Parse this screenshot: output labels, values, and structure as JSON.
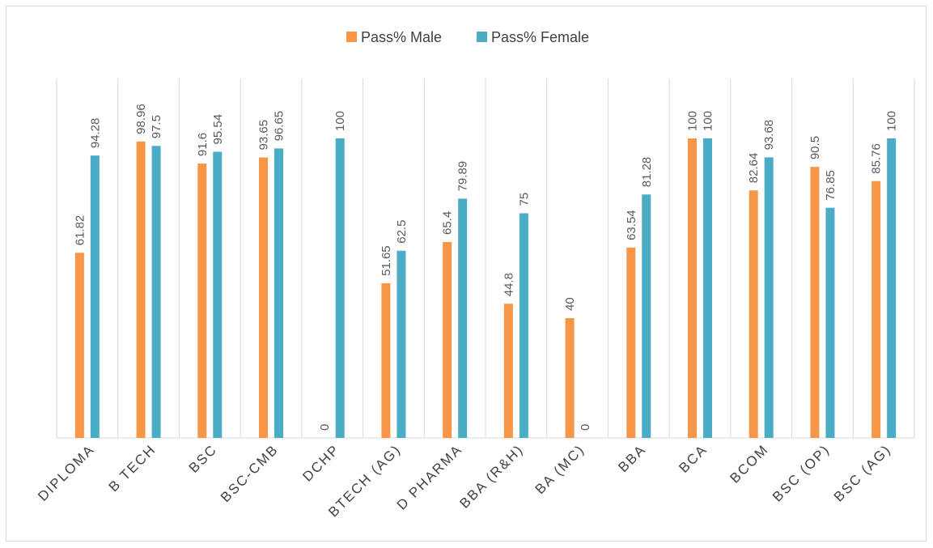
{
  "chart_data": {
    "type": "bar",
    "title": "",
    "xlabel": "",
    "ylabel": "",
    "ylim": [
      0,
      100
    ],
    "grid": "vertical-category-separators",
    "legend": "top-center",
    "categories": [
      "DIPLOMA",
      "B TECH",
      "BSC",
      "BSC-CMB",
      "DCHP",
      "BTECH (AG)",
      "D PHARMA",
      "BBA (R&H)",
      "BA (MC)",
      "BBA",
      "BCA",
      "BCOM",
      "BSC (OP)",
      "BSC (AG)"
    ],
    "series": [
      {
        "name": "Pass% Male",
        "color": "#F79646",
        "values": [
          61.82,
          98.96,
          91.6,
          93.65,
          0,
          51.65,
          65.4,
          44.8,
          40,
          63.54,
          100,
          82.64,
          90.5,
          85.76
        ],
        "labels": [
          "61.82",
          "98.96",
          "91.6",
          "93.65",
          "0",
          "51.65",
          "65.4",
          "44.8",
          "40",
          "63.54",
          "100",
          "82.64",
          "90.5",
          "85.76"
        ]
      },
      {
        "name": "Pass% Female",
        "color": "#4BACC6",
        "values": [
          94.28,
          97.5,
          95.54,
          96.65,
          100,
          62.5,
          79.89,
          75,
          0,
          81.28,
          100,
          93.68,
          76.85,
          100
        ],
        "labels": [
          "94.28",
          "97.5",
          "95.54",
          "96.65",
          "100",
          "62.5",
          "79.89",
          "75",
          "0",
          "81.28",
          "100",
          "93.68",
          "76.85",
          "100"
        ]
      }
    ]
  }
}
